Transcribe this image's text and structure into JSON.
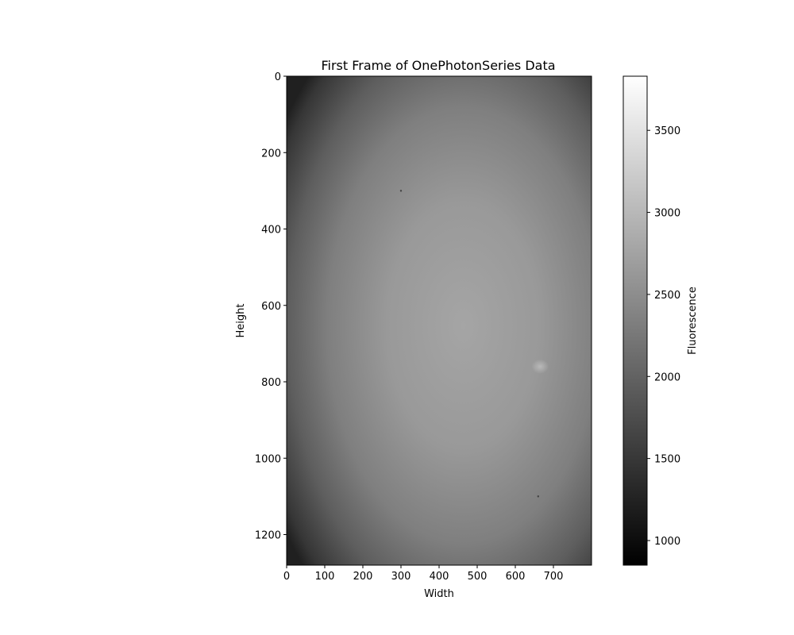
{
  "chart_data": {
    "type": "heatmap",
    "title": "First Frame of OnePhotonSeries Data",
    "xlabel": "Width",
    "ylabel": "Height",
    "colorbar_label": "Fluorescence",
    "colormap": "gray",
    "xlim": [
      0,
      800
    ],
    "ylim": [
      1280,
      0
    ],
    "y_inverted": true,
    "xticks": [
      0,
      100,
      200,
      300,
      400,
      500,
      600,
      700
    ],
    "yticks": [
      0,
      200,
      400,
      600,
      800,
      1000,
      1200
    ],
    "colorbar_range": [
      850,
      3830
    ],
    "colorbar_ticks": [
      1000,
      1500,
      2000,
      2500,
      3000,
      3500
    ],
    "image_description_values": {
      "center_xy": [
        470,
        650
      ],
      "center_value": 2780,
      "edge_value": 1500,
      "corner_value": 1050
    },
    "features": [
      {
        "x": 665,
        "y": 760,
        "value": 3100,
        "kind": "bright spot"
      },
      {
        "x": 300,
        "y": 300,
        "value": 1650,
        "kind": "dark speck"
      },
      {
        "x": 660,
        "y": 1100,
        "value": 1600,
        "kind": "dark speck"
      }
    ]
  }
}
